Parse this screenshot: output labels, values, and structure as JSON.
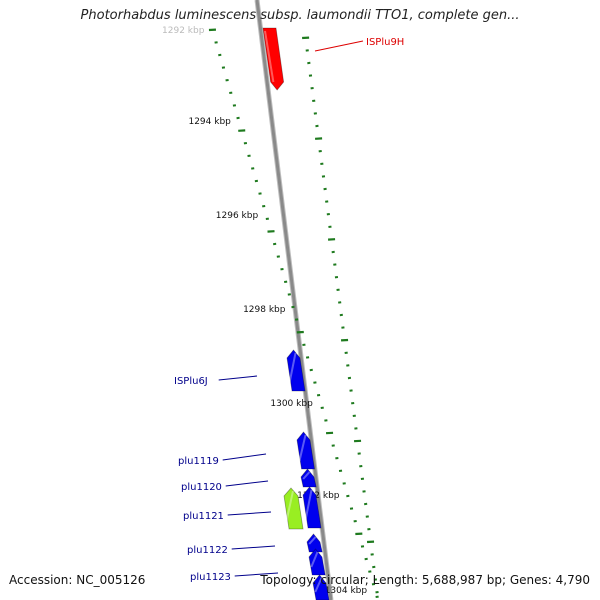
{
  "title": "Photorhabdus luminescens subsp. laumondii TTO1, complete gen...",
  "footer": {
    "accession": "Accession: NC_005126",
    "summary": "Topology: circular; Length: 5,688,987 bp; Genes: 4,790"
  },
  "colors": {
    "backbone": "#8a8a8a",
    "tick": "#1e7a1e",
    "cds": "#0000ee",
    "mobile_element": "#ff0000",
    "highlight": "#99ee22",
    "label_blue": "#00008b",
    "label_red": "#dd0000"
  },
  "ruler": {
    "labels": [
      "1292 kbp",
      "1294 kbp",
      "1296 kbp",
      "1298 kbp",
      "1300 kbp",
      "1302 kbp",
      "1304 kbp"
    ]
  },
  "features": [
    {
      "name": "ISPlu9H",
      "kind": "mobile_element",
      "strand": "-"
    },
    {
      "name": "ISPlu6J",
      "kind": "cds",
      "strand": "+"
    },
    {
      "name": "plu1119",
      "kind": "cds",
      "strand": "+"
    },
    {
      "name": "plu1120",
      "kind": "cds",
      "strand": "+"
    },
    {
      "name": "plu1121",
      "kind": "cds",
      "strand": "+"
    },
    {
      "name": "plu1122",
      "kind": "cds",
      "strand": "+"
    },
    {
      "name": "plu1123",
      "kind": "cds",
      "strand": "+"
    }
  ]
}
